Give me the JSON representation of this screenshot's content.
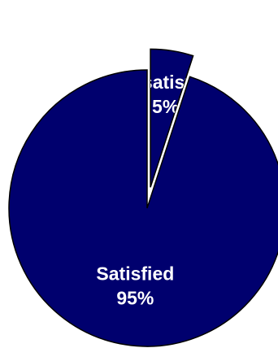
{
  "chart_data": {
    "type": "pie",
    "slices": [
      {
        "label": "Satisfied",
        "value": 95,
        "value_label": "95%",
        "color": "#00006e",
        "exploded": false
      },
      {
        "label": "Dissatisfied",
        "value": 5,
        "value_label": "5%",
        "color": "#00006e",
        "exploded": true
      }
    ],
    "start": "12 o'clock",
    "direction": "counterclockwise",
    "legend": "none"
  }
}
